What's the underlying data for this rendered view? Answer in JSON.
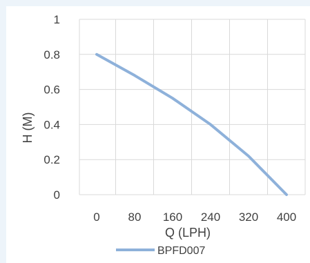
{
  "chart_data": {
    "type": "line",
    "title": "",
    "xlabel": "Q (LPH)",
    "ylabel": "H (M)",
    "x_ticks": [
      "0",
      "80",
      "160",
      "240",
      "320",
      "400"
    ],
    "y_ticks": [
      "0",
      "0.2",
      "0.4",
      "0.6",
      "0.8",
      "1"
    ],
    "xlim": [
      0,
      400
    ],
    "ylim": [
      0,
      1
    ],
    "grid": true,
    "legend_position": "bottom",
    "series": [
      {
        "name": "BPFD007",
        "color": "#8eb1da",
        "x": [
          0,
          80,
          160,
          240,
          320,
          400
        ],
        "y": [
          0.8,
          0.68,
          0.55,
          0.4,
          0.22,
          0
        ]
      }
    ]
  }
}
